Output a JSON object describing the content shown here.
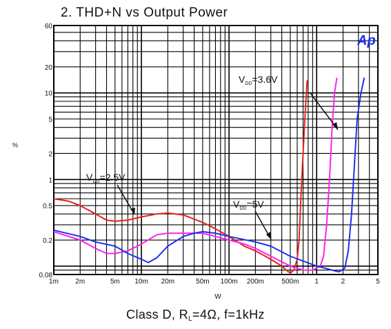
{
  "chart_data": {
    "type": "line",
    "title": "2. THD+N vs Output Power",
    "xlabel": "W",
    "ylabel": "%",
    "x_scale": "log",
    "y_scale": "log",
    "xlim": [
      0.001,
      5
    ],
    "ylim": [
      0.08,
      60
    ],
    "grid": true,
    "x_ticks": [
      {
        "value": 0.001,
        "label": "1m"
      },
      {
        "value": 0.002,
        "label": "2m"
      },
      {
        "value": 0.005,
        "label": "5m"
      },
      {
        "value": 0.01,
        "label": "10m"
      },
      {
        "value": 0.02,
        "label": "20m"
      },
      {
        "value": 0.05,
        "label": "50m"
      },
      {
        "value": 0.1,
        "label": "100m"
      },
      {
        "value": 0.2,
        "label": "200m"
      },
      {
        "value": 0.5,
        "label": "500m"
      },
      {
        "value": 1,
        "label": "1"
      },
      {
        "value": 2,
        "label": "2"
      },
      {
        "value": 5,
        "label": "5"
      }
    ],
    "y_ticks": [
      {
        "value": 0.08,
        "label": "0.08"
      },
      {
        "value": 0.2,
        "label": "0.2"
      },
      {
        "value": 0.5,
        "label": "0.5"
      },
      {
        "value": 1,
        "label": "1"
      },
      {
        "value": 2,
        "label": "2"
      },
      {
        "value": 5,
        "label": "5"
      },
      {
        "value": 10,
        "label": "10"
      },
      {
        "value": 20,
        "label": "20"
      },
      {
        "value": 60,
        "label": "60"
      }
    ],
    "series": [
      {
        "name": "VDD=2.5V",
        "color": "#e8201c",
        "points": [
          [
            0.001,
            0.6
          ],
          [
            0.0015,
            0.56
          ],
          [
            0.002,
            0.5
          ],
          [
            0.003,
            0.4
          ],
          [
            0.004,
            0.34
          ],
          [
            0.005,
            0.33
          ],
          [
            0.007,
            0.34
          ],
          [
            0.01,
            0.37
          ],
          [
            0.015,
            0.4
          ],
          [
            0.02,
            0.41
          ],
          [
            0.03,
            0.39
          ],
          [
            0.05,
            0.32
          ],
          [
            0.07,
            0.27
          ],
          [
            0.1,
            0.22
          ],
          [
            0.15,
            0.17
          ],
          [
            0.2,
            0.15
          ],
          [
            0.3,
            0.12
          ],
          [
            0.4,
            0.1
          ],
          [
            0.45,
            0.09
          ],
          [
            0.5,
            0.083
          ],
          [
            0.55,
            0.09
          ],
          [
            0.6,
            0.12
          ],
          [
            0.63,
            0.2
          ],
          [
            0.66,
            0.6
          ],
          [
            0.7,
            2
          ],
          [
            0.74,
            6
          ],
          [
            0.78,
            14
          ]
        ]
      },
      {
        "name": "VDD=3.6V",
        "color": "#ff22ee",
        "points": [
          [
            0.001,
            0.25
          ],
          [
            0.002,
            0.2
          ],
          [
            0.003,
            0.16
          ],
          [
            0.004,
            0.14
          ],
          [
            0.005,
            0.14
          ],
          [
            0.007,
            0.15
          ],
          [
            0.01,
            0.18
          ],
          [
            0.015,
            0.23
          ],
          [
            0.02,
            0.24
          ],
          [
            0.03,
            0.24
          ],
          [
            0.05,
            0.24
          ],
          [
            0.07,
            0.22
          ],
          [
            0.1,
            0.2
          ],
          [
            0.15,
            0.18
          ],
          [
            0.2,
            0.16
          ],
          [
            0.3,
            0.13
          ],
          [
            0.5,
            0.1
          ],
          [
            0.7,
            0.09
          ],
          [
            0.9,
            0.09
          ],
          [
            1.1,
            0.1
          ],
          [
            1.2,
            0.13
          ],
          [
            1.3,
            0.3
          ],
          [
            1.4,
            1
          ],
          [
            1.5,
            4
          ],
          [
            1.6,
            10
          ],
          [
            1.7,
            15
          ]
        ]
      },
      {
        "name": "VDD=5V",
        "color": "#1d2ff0",
        "points": [
          [
            0.001,
            0.26
          ],
          [
            0.002,
            0.22
          ],
          [
            0.003,
            0.19
          ],
          [
            0.005,
            0.17
          ],
          [
            0.007,
            0.14
          ],
          [
            0.01,
            0.12
          ],
          [
            0.012,
            0.11
          ],
          [
            0.015,
            0.125
          ],
          [
            0.02,
            0.17
          ],
          [
            0.03,
            0.22
          ],
          [
            0.04,
            0.24
          ],
          [
            0.05,
            0.25
          ],
          [
            0.07,
            0.24
          ],
          [
            0.1,
            0.22
          ],
          [
            0.2,
            0.19
          ],
          [
            0.3,
            0.17
          ],
          [
            0.5,
            0.13
          ],
          [
            1,
            0.1
          ],
          [
            1.5,
            0.09
          ],
          [
            1.8,
            0.086
          ],
          [
            2.1,
            0.095
          ],
          [
            2.3,
            0.15
          ],
          [
            2.5,
            0.4
          ],
          [
            2.7,
            1.5
          ],
          [
            2.9,
            5
          ],
          [
            3.2,
            10
          ],
          [
            3.5,
            15
          ]
        ]
      }
    ],
    "annotations": {
      "v25": {
        "main": "V",
        "sub": "DD",
        "rest": "=2.5V"
      },
      "v36": {
        "main": "V",
        "sub": "DD",
        "rest": "=3.6V"
      },
      "v5": {
        "main": "V",
        "sub": "DD",
        "rest": "=5V"
      }
    },
    "logo": "Ap",
    "caption": {
      "part1": "Class D, R",
      "sub": "L",
      "part2": "=4Ω, f=1kHz"
    }
  }
}
